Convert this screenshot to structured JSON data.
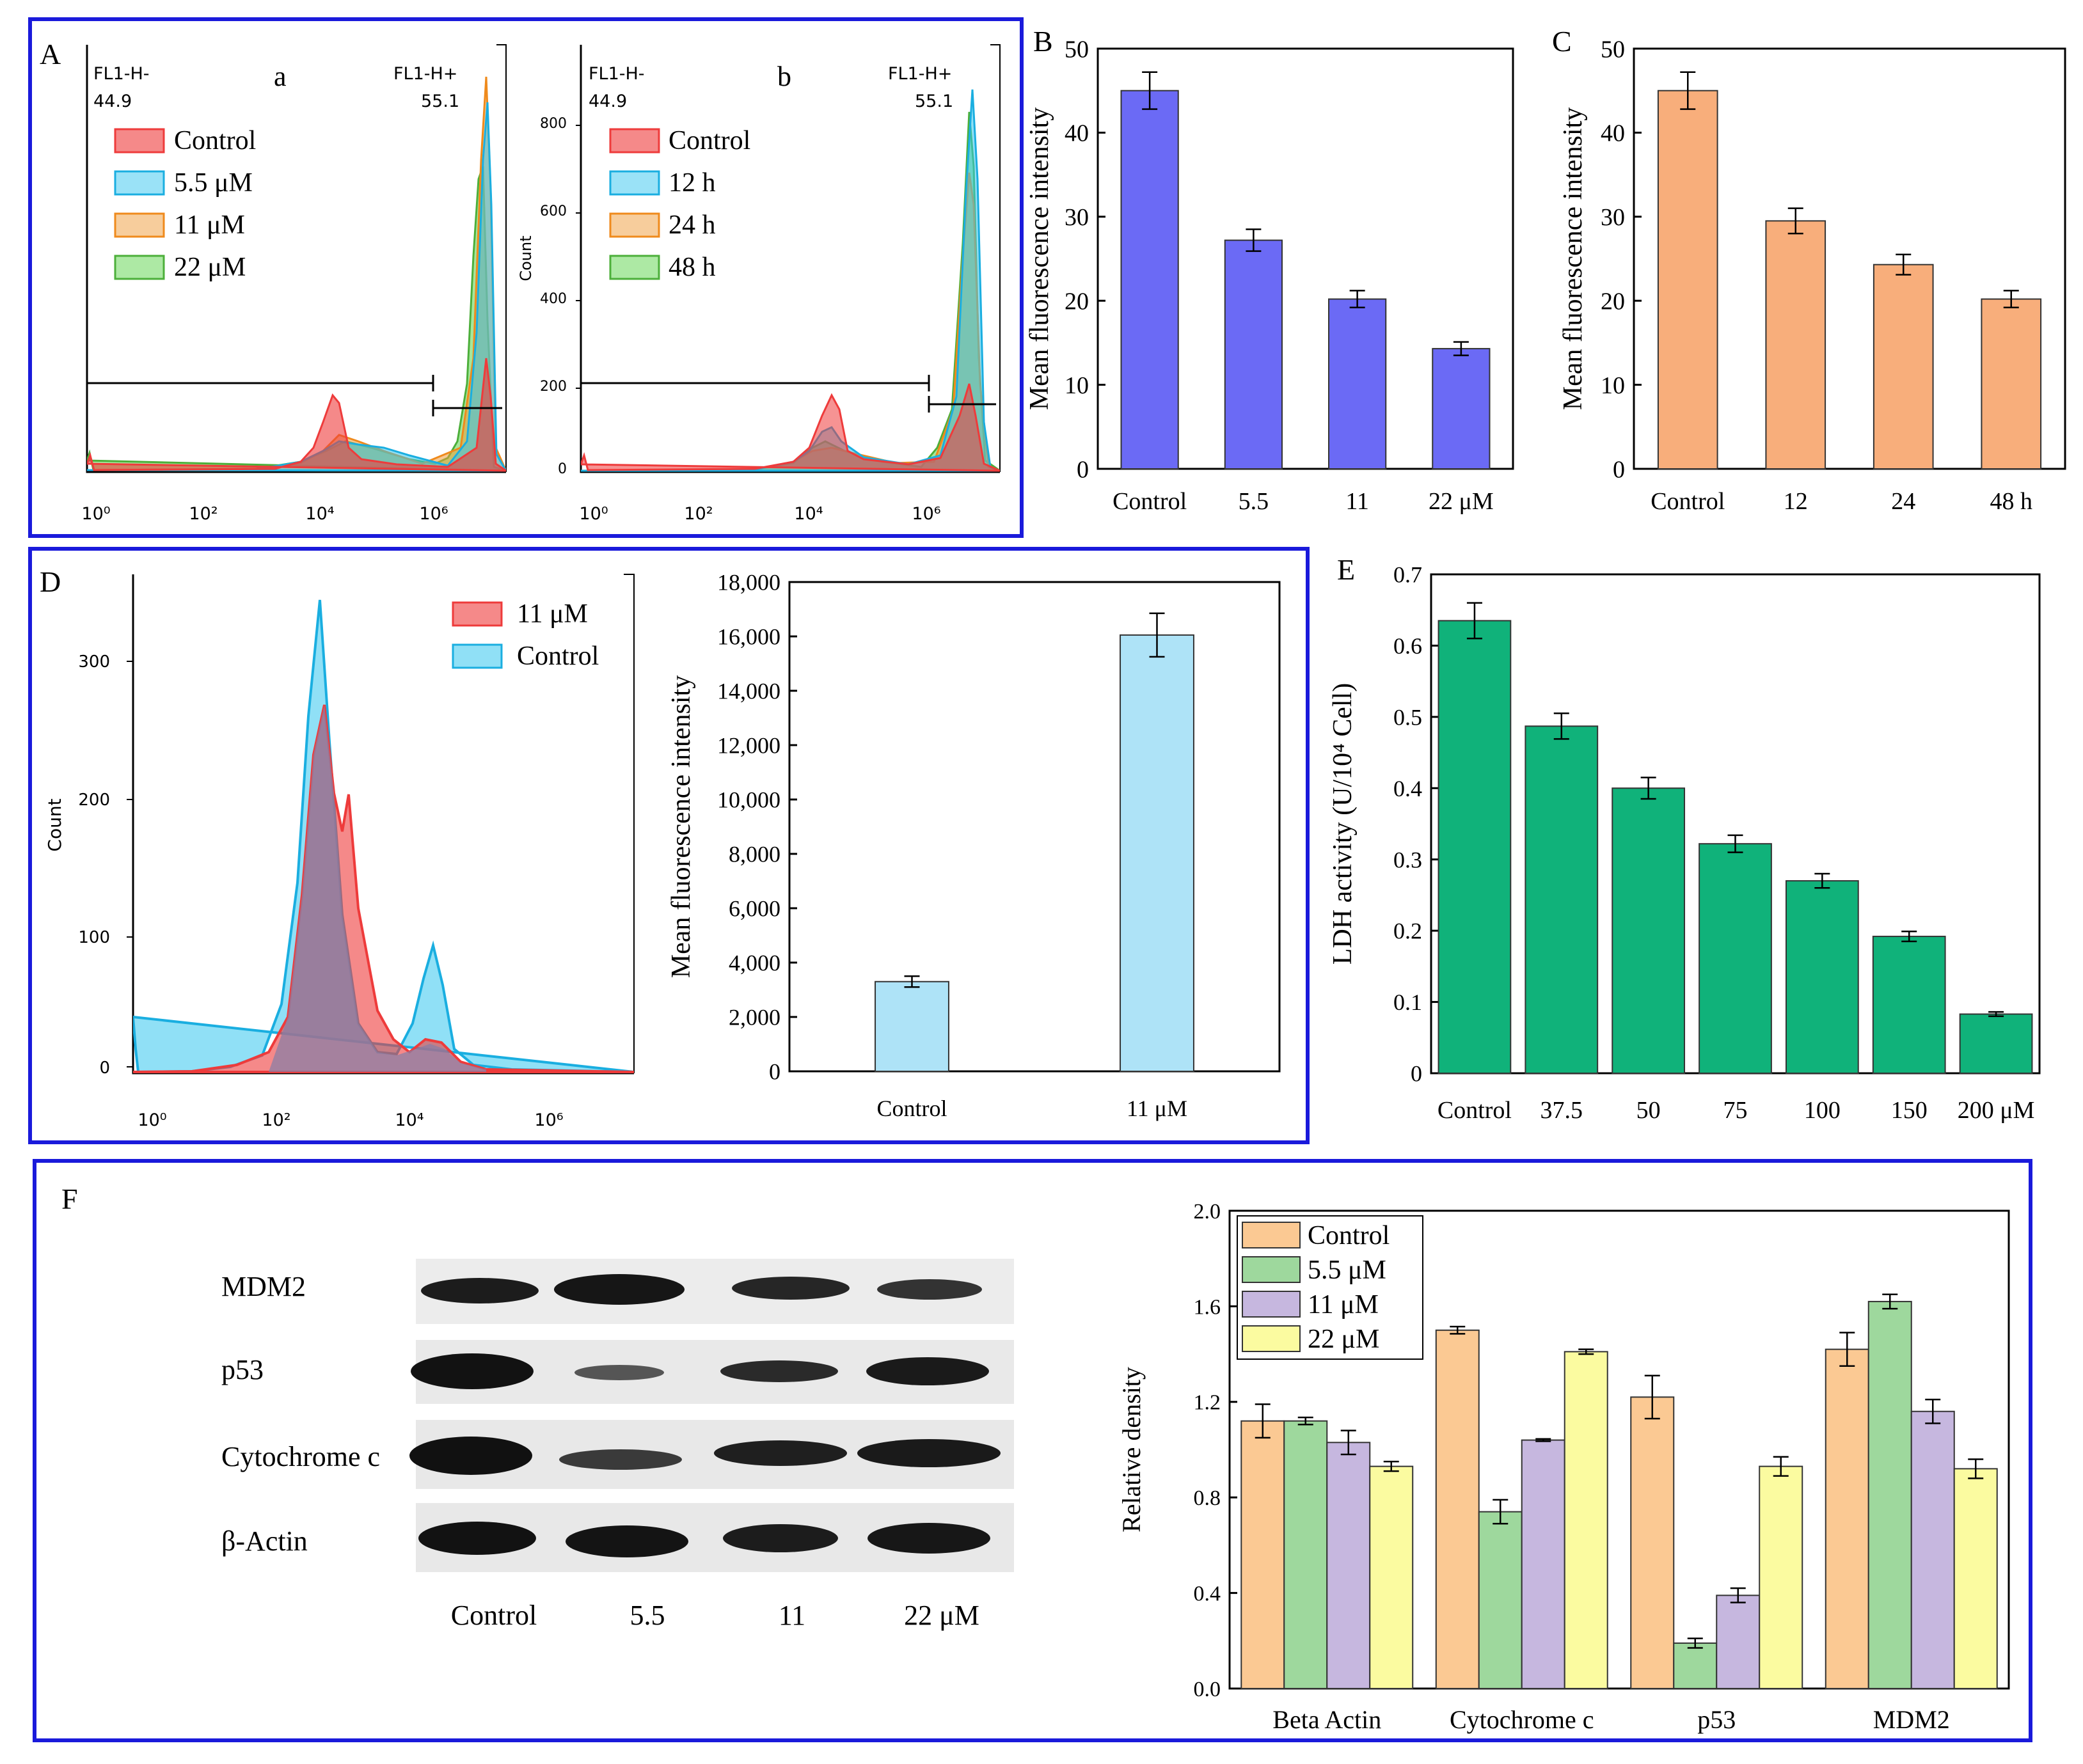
{
  "colors": {
    "frame": "#1a1adb",
    "red": "#ee3b3b",
    "cyan": "#35c6ef",
    "orange": "#ef9b3a",
    "green": "#5bd34a",
    "bar_blue": "#6b6af5",
    "bar_orange": "#f8ae7b",
    "bar_light_blue": "#aee3f7",
    "bar_teal": "#10b27a",
    "grp_orange": "#fbc993",
    "grp_green": "#9ed89d",
    "grp_purple": "#c6b7df",
    "grp_yellow": "#fbfba0"
  },
  "panels": {
    "A": {
      "letter": "A",
      "a": {
        "sub": "a",
        "gate_left": "FL1-H-",
        "gate_left_val": "44.9",
        "gate_right": "FL1-H+",
        "gate_right_val": "55.1",
        "legend": [
          "Control",
          "5.5 μM",
          "11 μM",
          "22 μM"
        ],
        "xticks": [
          "10⁰",
          "10²",
          "10⁴",
          "10⁶"
        ]
      },
      "b": {
        "sub": "b",
        "gate_left": "FL1-H-",
        "gate_left_val": "44.9",
        "gate_right": "FL1-H+",
        "gate_right_val": "55.1",
        "legend": [
          "Control",
          "12 h",
          "24 h",
          "48 h"
        ],
        "ylabel": "Count",
        "yticks": [
          "0",
          "200",
          "400",
          "600",
          "800"
        ],
        "xticks": [
          "10⁰",
          "10²",
          "10⁴",
          "10⁶"
        ]
      }
    },
    "D": {
      "letter": "D",
      "ylabel": "Count",
      "yticks": [
        "0",
        "100",
        "200",
        "300"
      ],
      "xticks": [
        "10⁰",
        "10²",
        "10⁴",
        "10⁶"
      ],
      "legend": [
        "11 μM",
        "Control"
      ]
    },
    "F": {
      "letter": "F",
      "blot_rows": [
        "MDM2",
        "p53",
        "Cytochrome c",
        "β-Actin"
      ],
      "blot_lanes": [
        "Control",
        "5.5",
        "11",
        "22 μM"
      ]
    }
  },
  "chart_data": [
    {
      "id": "B",
      "type": "bar",
      "letter": "B",
      "categories": [
        "Control",
        "5.5",
        "11",
        "22 μM"
      ],
      "values": [
        45,
        27.2,
        20.2,
        14.3
      ],
      "errors": [
        2.2,
        1.3,
        1.0,
        0.8
      ],
      "ylabel": "Mean fluorescence intensity",
      "ylim": [
        0,
        50
      ],
      "yticks": [
        "0",
        "10",
        "20",
        "30",
        "40",
        "50"
      ]
    },
    {
      "id": "C",
      "type": "bar",
      "letter": "C",
      "categories": [
        "Control",
        "12",
        "24",
        "48 h"
      ],
      "values": [
        45,
        29.5,
        24.3,
        20.2
      ],
      "errors": [
        2.2,
        1.5,
        1.2,
        1.0
      ],
      "ylabel": "Mean fluorescence intensity",
      "ylim": [
        0,
        50
      ],
      "yticks": [
        "0",
        "10",
        "20",
        "30",
        "40",
        "50"
      ]
    },
    {
      "id": "D2",
      "type": "bar",
      "categories": [
        "Control",
        "11 μM"
      ],
      "values": [
        3300,
        16050
      ],
      "errors": [
        200,
        800
      ],
      "ylabel": "Mean fluorescence intensity",
      "ylim": [
        0,
        18000
      ],
      "yticks": [
        "0",
        "2,000",
        "4,000",
        "6,000",
        "8,000",
        "10,000",
        "12,000",
        "14,000",
        "16,000",
        "18,000"
      ]
    },
    {
      "id": "E",
      "type": "bar",
      "letter": "E",
      "categories": [
        "Control",
        "37.5",
        "50",
        "75",
        "100",
        "150",
        "200 μM"
      ],
      "values": [
        0.635,
        0.487,
        0.4,
        0.322,
        0.27,
        0.192,
        0.083
      ],
      "errors": [
        0.025,
        0.018,
        0.015,
        0.012,
        0.01,
        0.007,
        0.003
      ],
      "ylabel": "LDH activity (U/10⁴ Cell)",
      "ylim": [
        0,
        0.7
      ],
      "yticks": [
        "0",
        "0.1",
        "0.2",
        "0.3",
        "0.4",
        "0.5",
        "0.6",
        "0.7"
      ]
    },
    {
      "id": "F2",
      "type": "bar",
      "categories": [
        "Beta Actin",
        "Cytochrome c",
        "p53",
        "MDM2"
      ],
      "series": [
        {
          "name": "Control",
          "values": [
            1.12,
            1.5,
            1.22,
            1.42
          ],
          "errors": [
            0.07,
            0.015,
            0.09,
            0.07
          ]
        },
        {
          "name": "5.5 μM",
          "values": [
            1.12,
            0.74,
            0.19,
            1.62
          ],
          "errors": [
            0.015,
            0.05,
            0.02,
            0.03
          ]
        },
        {
          "name": "11 μM",
          "values": [
            1.03,
            1.04,
            0.39,
            1.16
          ],
          "errors": [
            0.05,
            0.005,
            0.03,
            0.05
          ]
        },
        {
          "name": "22 μM",
          "values": [
            0.93,
            1.41,
            0.93,
            0.92
          ],
          "errors": [
            0.02,
            0.01,
            0.04,
            0.04
          ]
        }
      ],
      "ylabel": "Relative density",
      "ylim": [
        0,
        2.0
      ],
      "yticks": [
        "0.0",
        "0.4",
        "0.8",
        "1.2",
        "1.6",
        "2.0"
      ],
      "legend_position": "top-left"
    }
  ]
}
